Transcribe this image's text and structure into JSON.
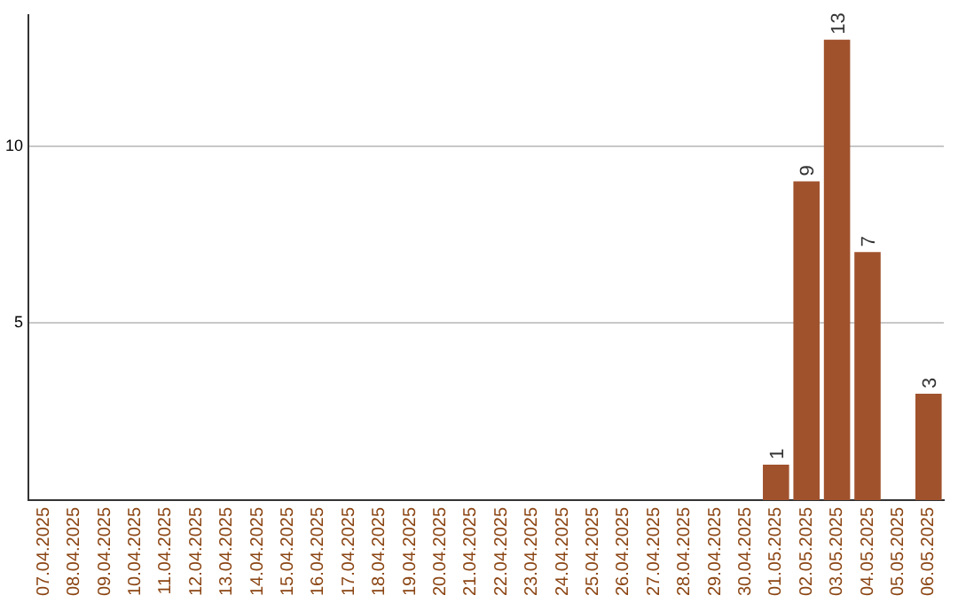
{
  "chart_data": {
    "type": "bar",
    "categories": [
      "07.04.2025",
      "08.04.2025",
      "09.04.2025",
      "10.04.2025",
      "11.04.2025",
      "12.04.2025",
      "13.04.2025",
      "14.04.2025",
      "15.04.2025",
      "16.04.2025",
      "17.04.2025",
      "18.04.2025",
      "19.04.2025",
      "20.04.2025",
      "21.04.2025",
      "22.04.2025",
      "23.04.2025",
      "24.04.2025",
      "25.04.2025",
      "26.04.2025",
      "27.04.2025",
      "28.04.2025",
      "29.04.2025",
      "30.04.2025",
      "01.05.2025",
      "02.05.2025",
      "03.05.2025",
      "04.05.2025",
      "05.05.2025",
      "06.05.2025"
    ],
    "values": [
      0,
      0,
      0,
      0,
      0,
      0,
      0,
      0,
      0,
      0,
      0,
      0,
      0,
      0,
      0,
      0,
      0,
      0,
      0,
      0,
      0,
      0,
      0,
      0,
      1,
      9,
      13,
      7,
      0,
      3
    ],
    "value_labels": [
      null,
      null,
      null,
      null,
      null,
      null,
      null,
      null,
      null,
      null,
      null,
      null,
      null,
      null,
      null,
      null,
      null,
      null,
      null,
      null,
      null,
      null,
      null,
      null,
      "1",
      "9",
      "13",
      "7",
      null,
      "3"
    ],
    "color": "#a0522d",
    "ylim": [
      0,
      13.7
    ],
    "yticks": [
      5,
      10
    ],
    "grid": "y",
    "legend": false
  }
}
